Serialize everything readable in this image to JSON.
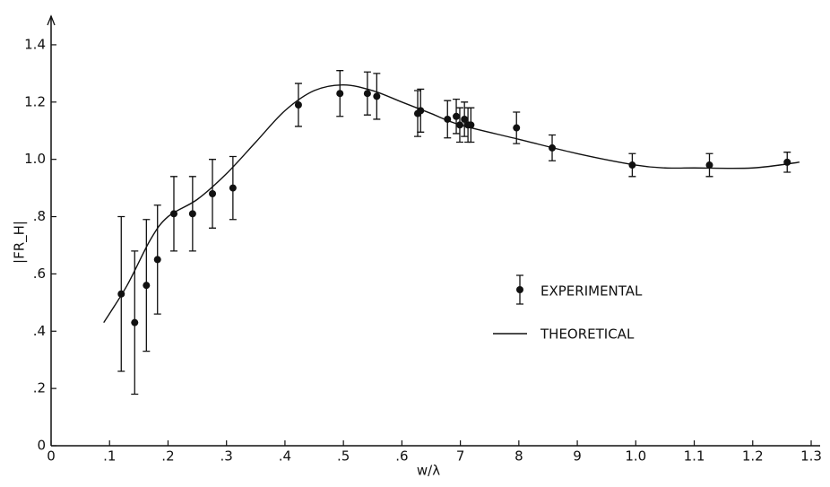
{
  "chart_data": {
    "type": "errorbar",
    "xlabel": "w/λ",
    "ylabel": "|FR_H|",
    "xlim": [
      0,
      1.3
    ],
    "ylim": [
      0,
      1.5
    ],
    "xticks": [
      0,
      {
        "value": 0.1,
        "label": ".1"
      },
      {
        "value": 0.2,
        "label": ".2"
      },
      {
        "value": 0.3,
        "label": ".3"
      },
      {
        "value": 0.4,
        "label": ".4"
      },
      {
        "value": 0.5,
        "label": ".5"
      },
      {
        "value": 0.6,
        "label": ".6"
      },
      {
        "value": 0.7,
        "label": "7"
      },
      {
        "value": 0.8,
        "label": "8"
      },
      {
        "value": 0.9,
        "label": "9"
      },
      {
        "value": 1.0,
        "label": "1.0"
      },
      {
        "value": 1.1,
        "label": "1.1"
      },
      {
        "value": 1.2,
        "label": "1.2"
      },
      {
        "value": 1.3,
        "label": "1.3"
      }
    ],
    "yticks": [
      0,
      {
        "value": 0.2,
        "label": ".2"
      },
      {
        "value": 0.4,
        "label": ".4"
      },
      {
        "value": 0.6,
        "label": ".6"
      },
      {
        "value": 0.8,
        "label": ".8"
      },
      {
        "value": 1.0,
        "label": "1.0"
      },
      {
        "value": 1.2,
        "label": "1.2"
      },
      {
        "value": 1.4,
        "label": "1.4"
      }
    ],
    "series": [
      {
        "name": "EXPERIMENTAL",
        "type": "errorbar",
        "color": "#111111",
        "x": [
          0.12,
          0.143,
          0.163,
          0.182,
          0.21,
          0.242,
          0.276,
          0.311,
          0.423,
          0.494,
          0.541,
          0.557,
          0.627,
          0.632,
          0.678,
          0.693,
          0.699,
          0.707,
          0.713,
          0.718,
          0.796,
          0.857,
          0.994,
          1.126,
          1.259
        ],
        "values": [
          0.53,
          0.43,
          0.56,
          0.65,
          0.81,
          0.81,
          0.88,
          0.9,
          1.19,
          1.23,
          1.23,
          1.22,
          1.16,
          1.17,
          1.14,
          1.15,
          1.12,
          1.14,
          1.12,
          1.12,
          1.11,
          1.04,
          0.98,
          0.98,
          0.99
        ],
        "errors": [
          0.27,
          0.25,
          0.23,
          0.19,
          0.13,
          0.13,
          0.12,
          0.11,
          0.075,
          0.08,
          0.075,
          0.08,
          0.08,
          0.075,
          0.065,
          0.06,
          0.06,
          0.06,
          0.06,
          0.06,
          0.055,
          0.045,
          0.04,
          0.04,
          0.035
        ]
      },
      {
        "name": "THEORETICAL",
        "type": "line",
        "color": "#111111",
        "x": [
          0.09,
          0.13,
          0.17,
          0.2,
          0.25,
          0.3,
          0.35,
          0.4,
          0.45,
          0.5,
          0.55,
          0.6,
          0.65,
          0.7,
          0.8,
          0.9,
          1.0,
          1.05,
          1.1,
          1.2,
          1.28
        ],
        "values": [
          0.43,
          0.56,
          0.72,
          0.8,
          0.86,
          0.95,
          1.06,
          1.17,
          1.24,
          1.26,
          1.24,
          1.2,
          1.16,
          1.12,
          1.07,
          1.02,
          0.98,
          0.97,
          0.97,
          0.97,
          0.99
        ]
      }
    ]
  }
}
